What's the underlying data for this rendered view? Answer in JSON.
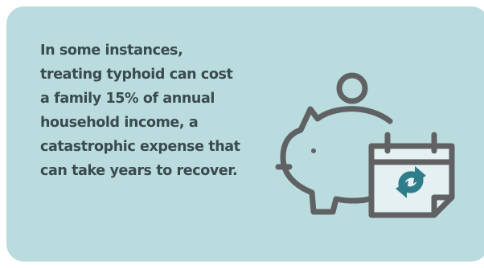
{
  "card": {
    "background_color": "#badcdf",
    "text": "In some instances, treating typhoid can cost a family 15% of annual household income, a catastrophic expense that can take years to recover.",
    "text_color": "#3a4a4e"
  },
  "illustration": {
    "icons": [
      "piggy-bank-icon",
      "coin-icon",
      "calendar-icon",
      "refresh-icon"
    ],
    "outline_color": "#5f6163",
    "accent_color": "#2f7c8a"
  }
}
